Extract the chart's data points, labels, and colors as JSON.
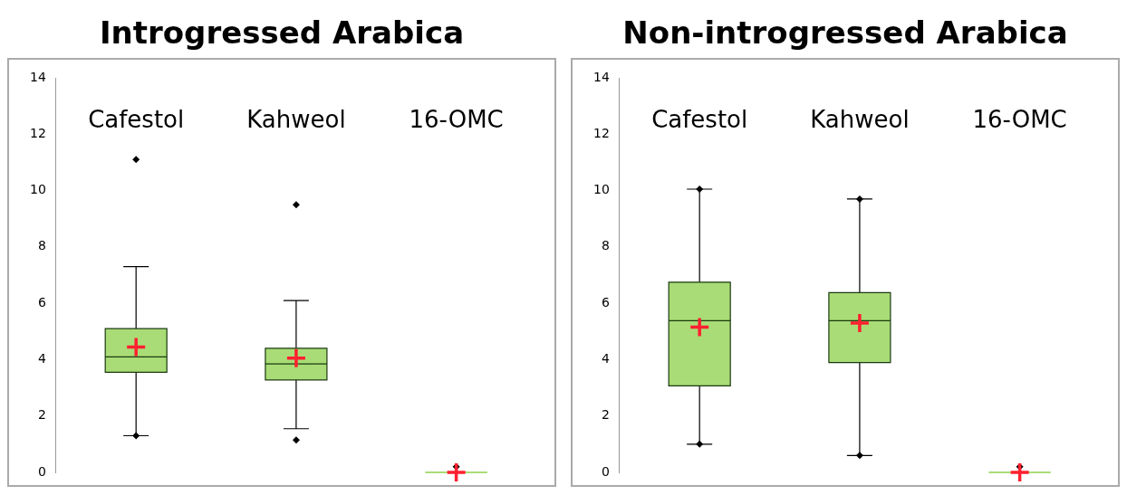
{
  "chart_data": [
    {
      "type": "box",
      "title": "Introgressed Arabica",
      "categories": [
        "Cafestol",
        "Kahweol",
        "16-OMC"
      ],
      "ylim": [
        0,
        14
      ],
      "yticks": [
        0,
        2,
        4,
        6,
        8,
        10,
        12,
        14
      ],
      "grid": false,
      "legend": false,
      "series": [
        {
          "color": "#a9dc76",
          "boxes": [
            {
              "low": 1.3,
              "q1": 3.55,
              "median": 4.1,
              "q3": 5.1,
              "high": 7.3,
              "mean": 4.45,
              "outliers": [
                11.1,
                1.3
              ]
            },
            {
              "low": 1.55,
              "q1": 3.28,
              "median": 3.85,
              "q3": 4.4,
              "high": 6.1,
              "mean": 4.05,
              "outliers": [
                9.5,
                1.15
              ]
            },
            {
              "low": 0,
              "q1": 0,
              "median": 0,
              "q3": 0,
              "high": 0,
              "mean": 0,
              "outliers": [
                0.2
              ]
            }
          ]
        }
      ]
    },
    {
      "type": "box",
      "title": "Non-introgressed Arabica",
      "categories": [
        "Cafestol",
        "Kahweol",
        "16-OMC"
      ],
      "ylim": [
        0,
        14
      ],
      "yticks": [
        0,
        2,
        4,
        6,
        8,
        10,
        12,
        14
      ],
      "grid": false,
      "legend": false,
      "series": [
        {
          "color": "#a9dc76",
          "boxes": [
            {
              "low": 1.0,
              "q1": 3.07,
              "median": 5.38,
              "q3": 6.75,
              "high": 10.05,
              "mean": 5.15,
              "outliers": [
                10.05,
                1.0
              ]
            },
            {
              "low": 0.6,
              "q1": 3.9,
              "median": 5.38,
              "q3": 6.38,
              "high": 9.7,
              "mean": 5.3,
              "outliers": [
                9.7,
                0.6
              ]
            },
            {
              "low": 0,
              "q1": 0,
              "median": 0,
              "q3": 0,
              "high": 0,
              "mean": 0,
              "outliers": [
                0.2
              ]
            }
          ]
        }
      ]
    }
  ]
}
